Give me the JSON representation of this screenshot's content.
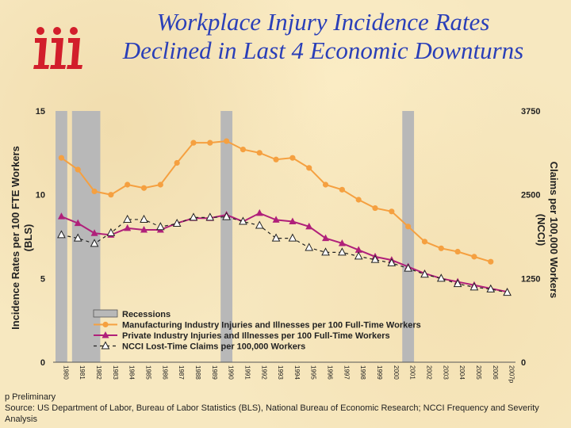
{
  "slide": {
    "title_line1": "Workplace Injury Incidence Rates",
    "title_line2": "Declined in Last 4 Economic Downturns",
    "footnote_line1": "p Preliminary",
    "footnote_line2": "Source: US Department of Labor, Bureau of Labor Statistics (BLS), National Bureau of Economic Research; NCCI Frequency and Severity Analysis"
  },
  "colors": {
    "title": "#2a3fb8",
    "logo": "#d21e2b",
    "manufacturing": "#f5a040",
    "private": "#b0207a",
    "ncci": "#222222",
    "recession": "#b8b8b8"
  },
  "chart_data": {
    "type": "line",
    "categories": [
      "1980",
      "1981",
      "1982",
      "1983",
      "1984",
      "1985",
      "1986",
      "1987",
      "1988",
      "1989",
      "1990",
      "1991",
      "1992",
      "1993",
      "1994",
      "1995",
      "1996",
      "1997",
      "1998",
      "1999",
      "2000",
      "2001",
      "2002",
      "2003",
      "2004",
      "2005",
      "2006",
      "2007p"
    ],
    "y_left": {
      "label": "Incidence Rates per 100 FTE Workers (BLS)",
      "label_line1": "Incidence Rates per 100 FTE Workers",
      "label_line2": "(BLS)",
      "ylim": [
        0,
        15
      ],
      "ticks": [
        "0",
        "5",
        "10",
        "15"
      ]
    },
    "y_right": {
      "label": "Claims per 100,000 Workers (NCCI)",
      "label_line1": "Claims per 100,000 Workers",
      "label_line2": "(NCCI)",
      "ylim": [
        0,
        3750
      ],
      "ticks": [
        "0",
        "1250",
        "2500",
        "3750"
      ]
    },
    "recessions": [
      {
        "start": "1980",
        "end": "1980"
      },
      {
        "start": "1981",
        "end": "1982"
      },
      {
        "start": "1990",
        "end": "1990"
      },
      {
        "start": "2001",
        "end": "2001"
      }
    ],
    "legend": {
      "recessions": "Recessions",
      "manufacturing": "Manufacturing Industry Injuries and Illnesses per 100 Full-Time Workers",
      "private": "Private Industry Injuries and Illnesses per 100 Full-Time Workers",
      "ncci": "NCCI Lost-Time Claims per 100,000 Workers"
    },
    "series": [
      {
        "key": "manufacturing",
        "name": "Manufacturing Industry Injuries and Illnesses per 100 Full-Time Workers",
        "axis": "left",
        "values": [
          12.2,
          11.5,
          10.2,
          10.0,
          10.6,
          10.4,
          10.6,
          11.9,
          13.1,
          13.1,
          13.2,
          12.7,
          12.5,
          12.1,
          12.2,
          11.6,
          10.6,
          10.3,
          9.7,
          9.2,
          9.0,
          8.1,
          7.2,
          6.8,
          6.6,
          6.3,
          6.0,
          null
        ]
      },
      {
        "key": "private",
        "name": "Private Industry Injuries and Illnesses per 100 Full-Time Workers",
        "axis": "left",
        "values": [
          8.7,
          8.3,
          7.7,
          7.6,
          8.0,
          7.9,
          7.9,
          8.3,
          8.6,
          8.6,
          8.8,
          8.4,
          8.9,
          8.5,
          8.4,
          8.1,
          7.4,
          7.1,
          6.7,
          6.3,
          6.1,
          5.7,
          5.3,
          5.0,
          4.8,
          4.6,
          4.4,
          4.2
        ]
      },
      {
        "key": "ncci",
        "name": "NCCI Lost-Time Claims per 100,000 Workers",
        "axis": "right",
        "values": [
          1900,
          1850,
          1770,
          1930,
          2130,
          2130,
          2020,
          2070,
          2160,
          2160,
          2170,
          2100,
          2040,
          1850,
          1850,
          1710,
          1640,
          1640,
          1580,
          1530,
          1480,
          1400,
          1310,
          1250,
          1170,
          1120,
          1090,
          1040
        ]
      }
    ]
  }
}
